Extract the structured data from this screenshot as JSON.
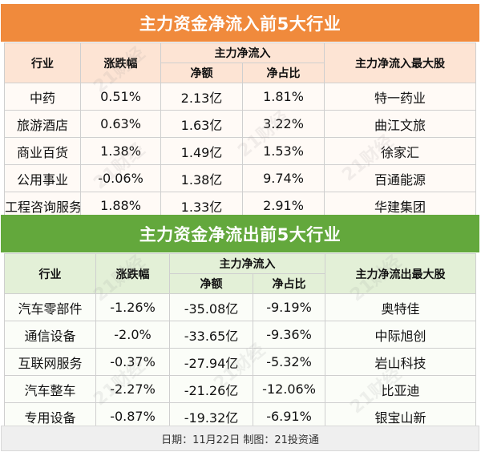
{
  "inflow": {
    "title": "主力资金净流入前5大行业",
    "headers": {
      "industry": "行业",
      "change": "涨跌幅",
      "group": "主力净流入",
      "amount": "净额",
      "ratio": "净占比",
      "top_stock": "主力净流入最大股"
    },
    "rows": [
      {
        "industry": "中药",
        "change": "0.51%",
        "amount": "2.13亿",
        "ratio": "1.81%",
        "top_stock": "特一药业"
      },
      {
        "industry": "旅游酒店",
        "change": "0.63%",
        "amount": "1.63亿",
        "ratio": "3.22%",
        "top_stock": "曲江文旅"
      },
      {
        "industry": "商业百货",
        "change": "1.38%",
        "amount": "1.49亿",
        "ratio": "1.53%",
        "top_stock": "徐家汇"
      },
      {
        "industry": "公用事业",
        "change": "-0.06%",
        "amount": "1.38亿",
        "ratio": "9.74%",
        "top_stock": "百通能源"
      },
      {
        "industry": "工程咨询服务",
        "change": "1.88%",
        "amount": "1.33亿",
        "ratio": "2.91%",
        "top_stock": "华建集团"
      }
    ]
  },
  "outflow": {
    "title": "主力资金净流出前5大行业",
    "headers": {
      "industry": "行业",
      "change": "涨跌幅",
      "group": "主力净流入",
      "amount": "净额",
      "ratio": "净占比",
      "top_stock": "主力净流出最大股"
    },
    "rows": [
      {
        "industry": "汽车零部件",
        "change": "-1.26%",
        "amount": "-35.08亿",
        "ratio": "-9.19%",
        "top_stock": "奥特佳"
      },
      {
        "industry": "通信设备",
        "change": "-2.0%",
        "amount": "-33.65亿",
        "ratio": "-9.36%",
        "top_stock": "中际旭创"
      },
      {
        "industry": "互联网服务",
        "change": "-0.37%",
        "amount": "-27.94亿",
        "ratio": "-5.32%",
        "top_stock": "岩山科技"
      },
      {
        "industry": "汽车整车",
        "change": "-2.27%",
        "amount": "-21.26亿",
        "ratio": "-12.06%",
        "top_stock": "比亚迪"
      },
      {
        "industry": "专用设备",
        "change": "-0.87%",
        "amount": "-19.32亿",
        "ratio": "-6.91%",
        "top_stock": "银宝山新"
      }
    ]
  },
  "footer": "日期：11月22日 制图：21投资通",
  "watermark": "21财经",
  "colors": {
    "inflow_accent": "#f08a3c",
    "outflow_accent": "#63a83c"
  }
}
